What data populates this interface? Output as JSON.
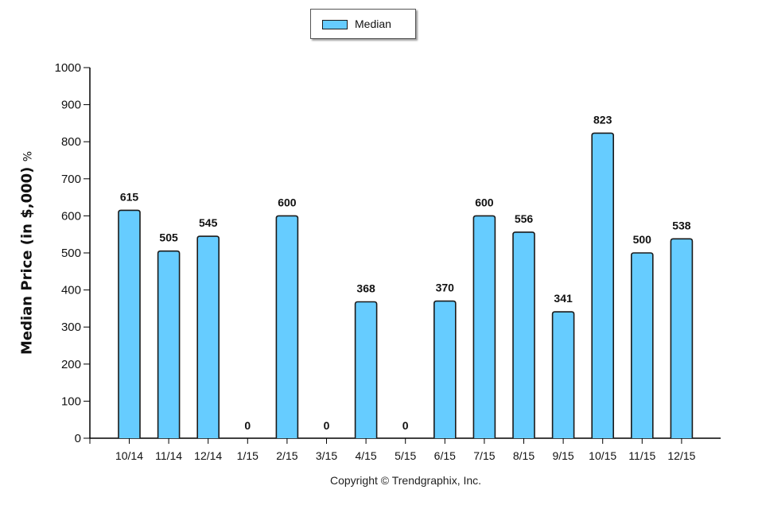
{
  "chart_data": {
    "type": "bar",
    "categories": [
      "10/14",
      "11/14",
      "12/14",
      "1/15",
      "2/15",
      "3/15",
      "4/15",
      "5/15",
      "6/15",
      "7/15",
      "8/15",
      "9/15",
      "10/15",
      "11/15",
      "12/15"
    ],
    "series": [
      {
        "name": "Median",
        "values": [
          615,
          505,
          545,
          0,
          600,
          0,
          368,
          0,
          370,
          600,
          556,
          341,
          823,
          500,
          538
        ]
      }
    ],
    "data_labels": [
      "615",
      "505",
      "545",
      "0",
      "600",
      "0",
      "368",
      "0",
      "370",
      "600",
      "556",
      "341",
      "823",
      "500",
      "538"
    ],
    "ylabel": "Median Price (in $,000)",
    "ylabel_unit": "%",
    "ylim": [
      0,
      1000
    ],
    "yticks": [
      0,
      100,
      200,
      300,
      400,
      500,
      600,
      700,
      800,
      900,
      1000
    ],
    "legend": {
      "position": "top-center",
      "label": "Median"
    },
    "grid": false,
    "colors": {
      "bar_fill": "#66CCFF",
      "bar_stroke": "#1a1a1a",
      "axis": "#000000"
    }
  },
  "footer": {
    "copyright": "Copyright © Trendgraphix, Inc."
  }
}
